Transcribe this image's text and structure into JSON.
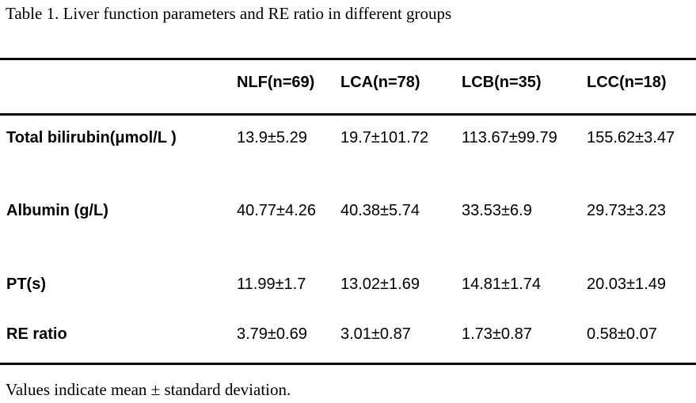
{
  "title": "Table 1. Liver function parameters and RE ratio in different groups",
  "table": {
    "columns": [
      "NLF(n=69)",
      "LCA(n=78)",
      "LCB(n=35)",
      "LCC(n=18)"
    ],
    "rows": [
      {
        "label": "Total bilirubin(μmol/L )",
        "values": [
          "13.9±5.29",
          "19.7±101.72",
          "113.67±99.79",
          "155.62±3.47"
        ]
      },
      {
        "label": "Albumin (g/L)",
        "values": [
          "40.77±4.26",
          "40.38±5.74",
          "33.53±6.9",
          "29.73±3.23"
        ]
      },
      {
        "label": "PT(s)",
        "values": [
          "11.99±1.7",
          "13.02±1.69",
          "14.81±1.74",
          "20.03±1.49"
        ]
      },
      {
        "label": "RE ratio",
        "values": [
          "3.79±0.69",
          "3.01±0.87",
          "1.73±0.87",
          "0.58±0.07"
        ]
      }
    ]
  },
  "footnote": "Values indicate mean ± standard deviation.",
  "colors": {
    "text": "#000000",
    "background": "#ffffff",
    "rule": "#000000"
  }
}
